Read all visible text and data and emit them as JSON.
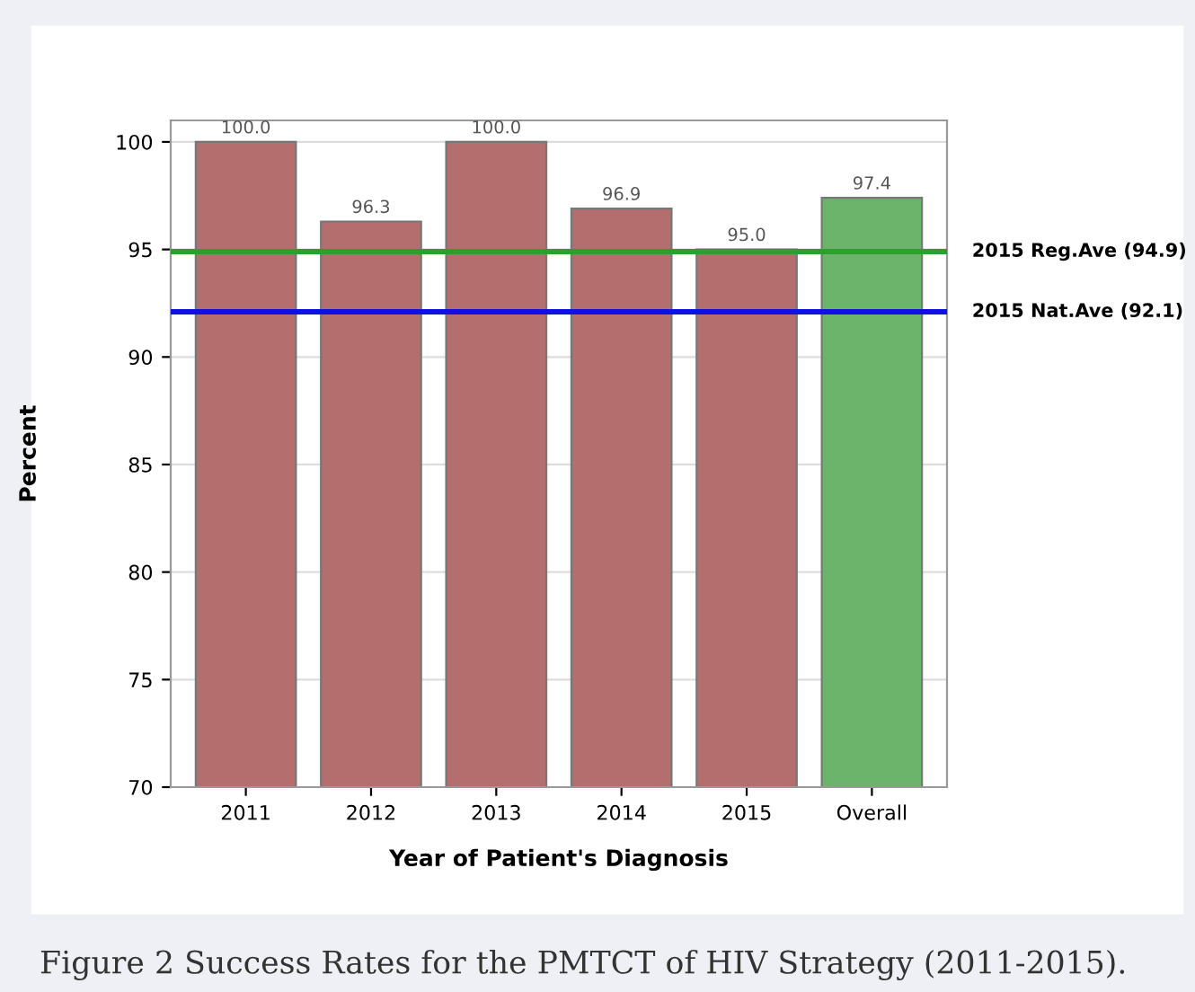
{
  "chart_data": {
    "type": "bar",
    "xlabel": "Year of Patient's Diagnosis",
    "ylabel": "Percent",
    "categories": [
      "2011",
      "2012",
      "2013",
      "2014",
      "2015",
      "Overall"
    ],
    "values": [
      100.0,
      96.3,
      100.0,
      96.9,
      95.0,
      97.4
    ],
    "colors": [
      "#b46e6e",
      "#b46e6e",
      "#b46e6e",
      "#b46e6e",
      "#b46e6e",
      "#6cb46c"
    ],
    "value_labels": [
      "100.0",
      "96.3",
      "100.0",
      "96.9",
      "95.0",
      "97.4"
    ],
    "ylim": [
      70,
      101
    ],
    "yticks": [
      70,
      75,
      80,
      85,
      90,
      95,
      100
    ],
    "grid": "y",
    "ref_lines": [
      {
        "axis": "y",
        "value": 94.9,
        "label": "2015 Reg.Ave (94.9)",
        "color": "#2ca02c",
        "line_style": "solid"
      },
      {
        "axis": "y",
        "value": 92.1,
        "label": "2015 Nat.Ave (92.1)",
        "color": "#1010e0",
        "line_style": "solid"
      }
    ],
    "annotations": [
      "Figure 2 Success Rates for the PMTCT of HIV Strategy (2011-2015)."
    ]
  }
}
